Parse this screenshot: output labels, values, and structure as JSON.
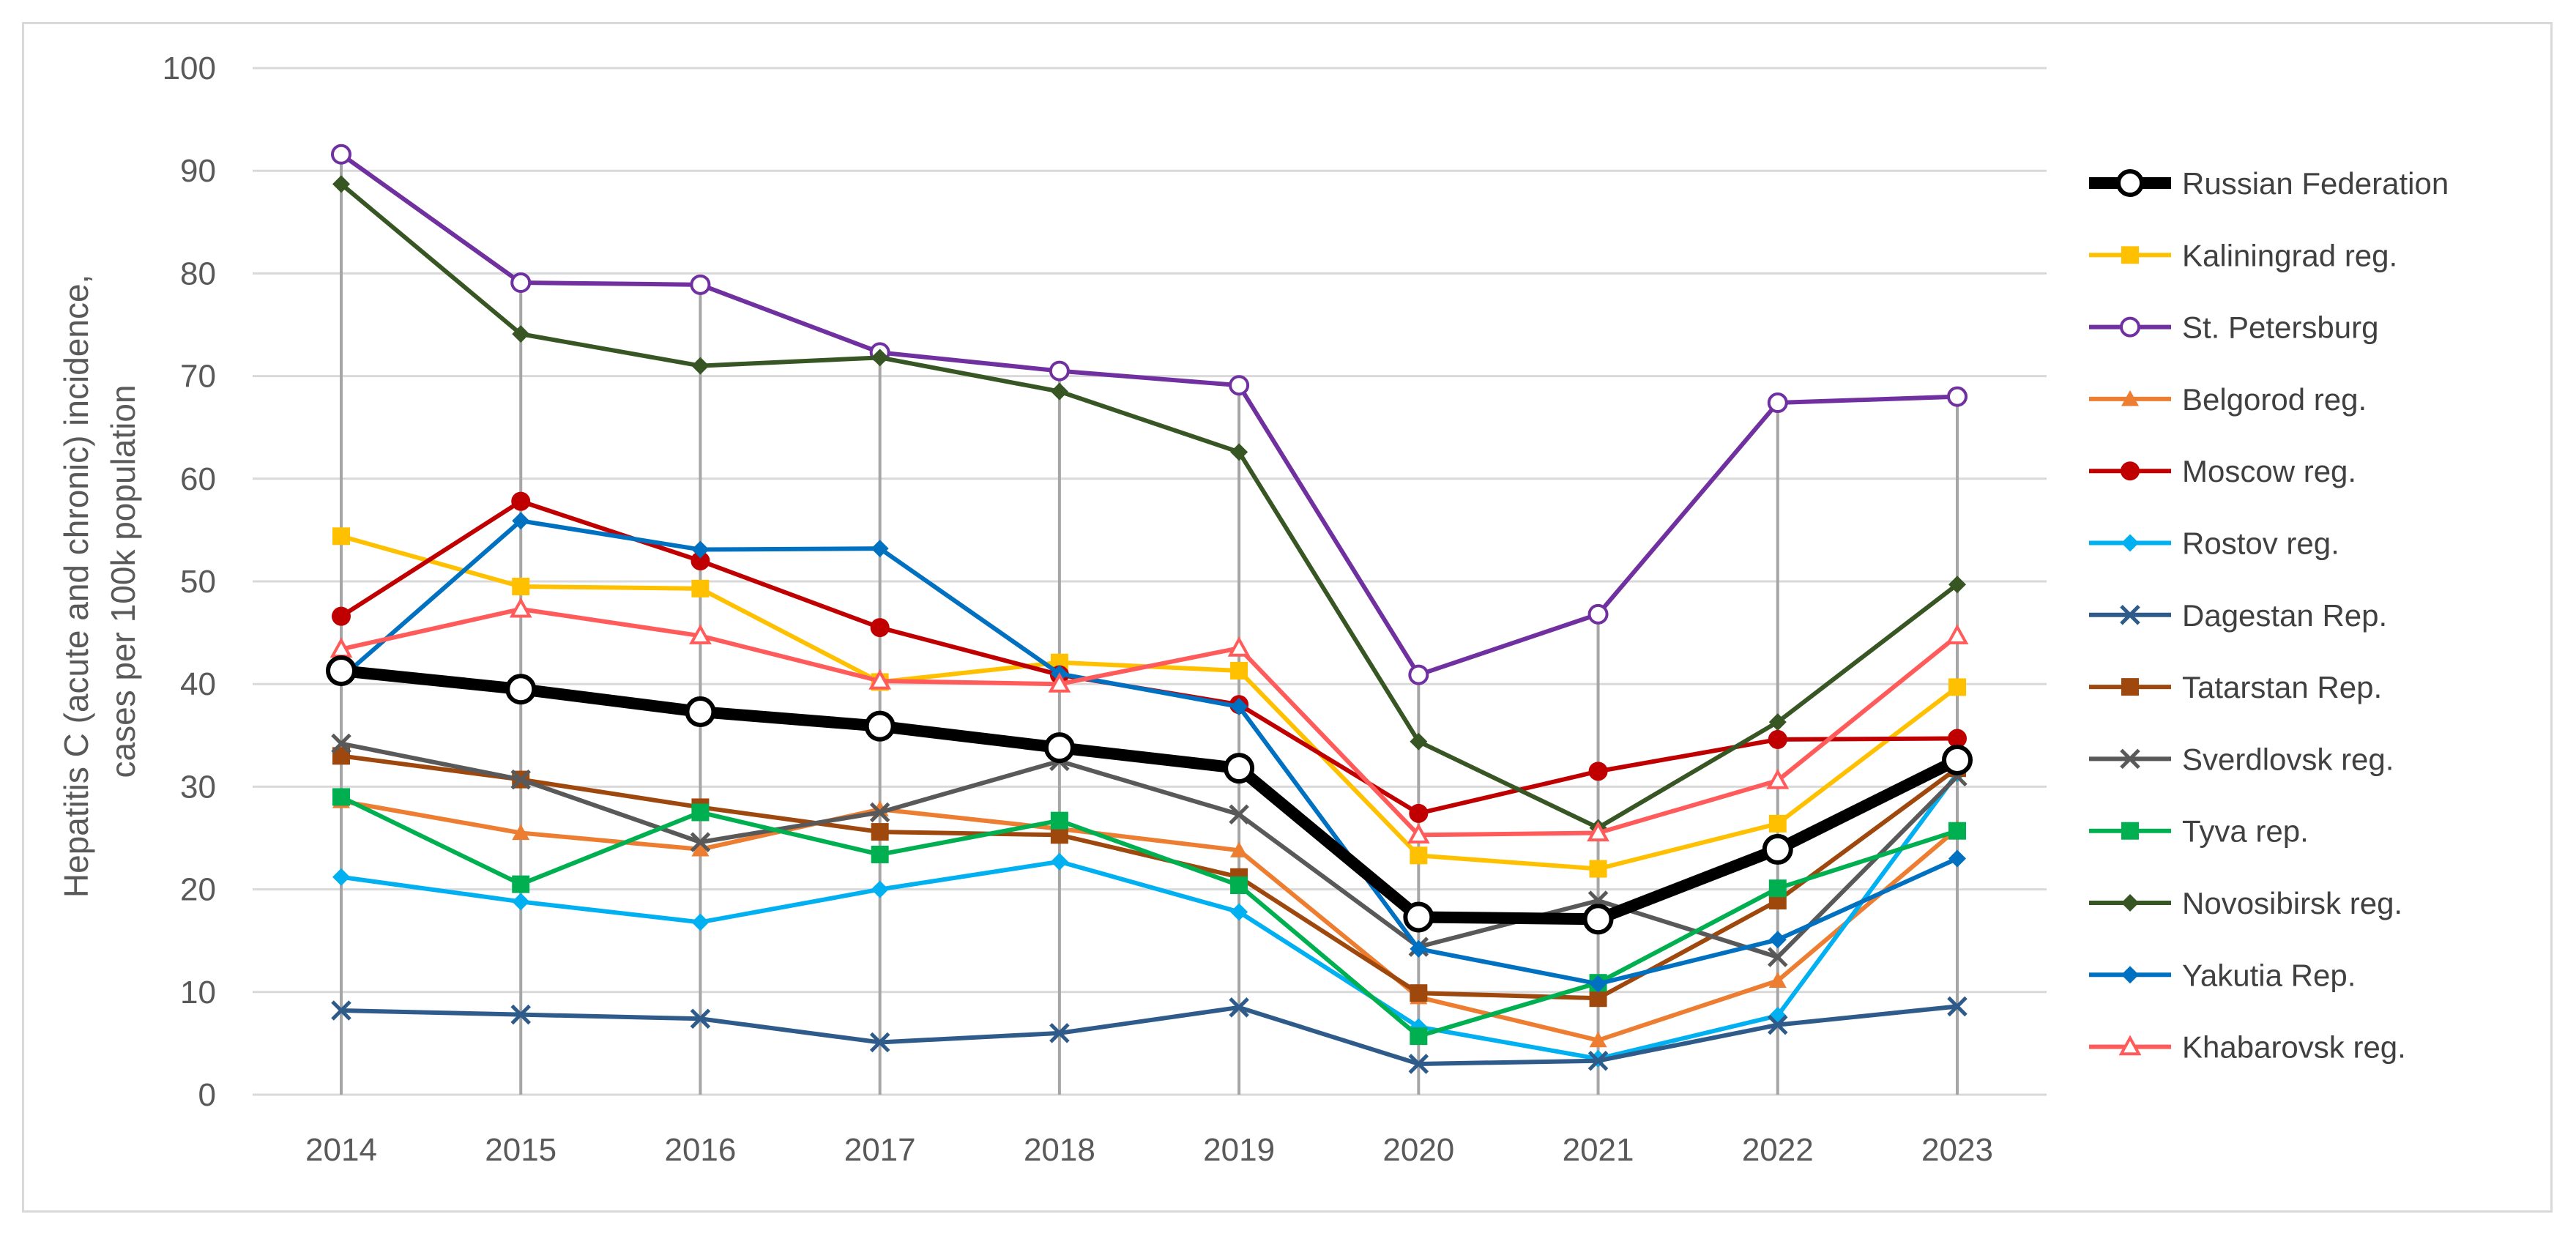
{
  "chart_data": {
    "type": "line",
    "ylabel_lines": [
      "Hepatitis C (acute and chronic) incidence,",
      "cases per 100k population"
    ],
    "ylim": [
      0,
      100
    ],
    "yticks": [
      0,
      10,
      20,
      30,
      40,
      50,
      60,
      70,
      80,
      90,
      100
    ],
    "categories": [
      "2014",
      "2015",
      "2016",
      "2017",
      "2018",
      "2019",
      "2020",
      "2021",
      "2022",
      "2023"
    ],
    "grid": "horizontal gridlines and vertical drop lines at each year",
    "legend_placement": "right",
    "series": [
      {
        "name": "Russian Federation",
        "color": "#000000",
        "marker": "circle-open",
        "values": [
          41.3,
          39.5,
          37.3,
          35.9,
          33.8,
          31.8,
          17.3,
          17.1,
          23.9,
          32.6
        ]
      },
      {
        "name": "Kaliningrad reg.",
        "color": "#FFC000",
        "marker": "square",
        "values": [
          54.4,
          49.5,
          49.3,
          40.2,
          42.1,
          41.3,
          23.3,
          22.0,
          26.4,
          39.7
        ]
      },
      {
        "name": "St. Petersburg",
        "color": "#7030A0",
        "marker": "circle-open",
        "values": [
          91.6,
          79.1,
          78.9,
          72.3,
          70.5,
          69.1,
          40.9,
          46.8,
          67.4,
          68.0
        ]
      },
      {
        "name": "Belgorod reg.",
        "color": "#ED7D31",
        "marker": "triangle",
        "values": [
          28.6,
          25.5,
          23.9,
          27.8,
          25.9,
          23.8,
          9.5,
          5.3,
          11.1,
          25.9
        ]
      },
      {
        "name": "Moscow reg.",
        "color": "#C00000",
        "marker": "circle",
        "values": [
          46.6,
          57.8,
          52.0,
          45.5,
          40.9,
          38.0,
          27.4,
          31.5,
          34.6,
          34.7
        ]
      },
      {
        "name": "Rostov reg.",
        "color": "#00B0F0",
        "marker": "diamond",
        "values": [
          21.2,
          18.8,
          16.8,
          20.0,
          22.7,
          17.8,
          6.6,
          3.5,
          7.7,
          31.3
        ]
      },
      {
        "name": "Dagestan Rep.",
        "color": "#2E5B8A",
        "marker": "x",
        "values": [
          8.2,
          7.8,
          7.4,
          5.1,
          6.0,
          8.5,
          3.0,
          3.3,
          6.8,
          8.6
        ]
      },
      {
        "name": "Tatarstan Rep.",
        "color": "#9E480E",
        "marker": "square",
        "values": [
          33.0,
          30.7,
          28.0,
          25.6,
          25.3,
          21.2,
          9.9,
          9.4,
          18.9,
          31.8
        ]
      },
      {
        "name": "Sverdlovsk reg.",
        "color": "#595959",
        "marker": "x",
        "values": [
          34.2,
          30.7,
          24.6,
          27.5,
          32.5,
          27.3,
          14.4,
          18.9,
          13.4,
          31.0
        ]
      },
      {
        "name": "Tyva rep.",
        "color": "#00B050",
        "marker": "square",
        "values": [
          29.0,
          20.5,
          27.5,
          23.4,
          26.7,
          20.4,
          5.7,
          10.9,
          20.1,
          25.7
        ]
      },
      {
        "name": "Novosibirsk reg.",
        "color": "#375623",
        "marker": "diamond",
        "values": [
          88.7,
          74.1,
          71.0,
          71.8,
          68.5,
          62.6,
          34.4,
          26.0,
          36.3,
          49.7
        ]
      },
      {
        "name": "Yakutia Rep.",
        "color": "#0070C0",
        "marker": "diamond",
        "values": [
          40.6,
          55.9,
          53.1,
          53.2,
          41.0,
          37.8,
          14.2,
          10.8,
          15.1,
          23.0
        ]
      },
      {
        "name": "Khabarovsk reg.",
        "color": "#FF5B5B",
        "marker": "triangle-open",
        "values": [
          43.4,
          47.3,
          44.7,
          40.3,
          40.0,
          43.5,
          25.3,
          25.5,
          30.6,
          44.7
        ]
      }
    ]
  }
}
